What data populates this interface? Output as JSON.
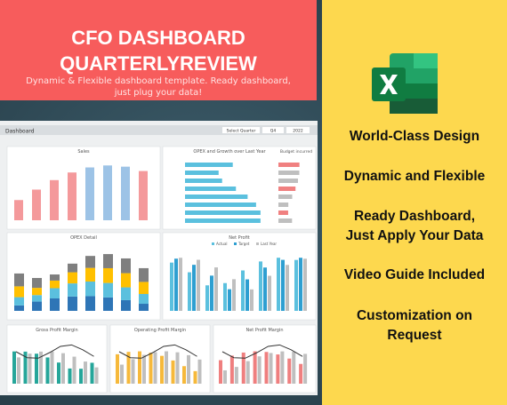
{
  "banner": {
    "title_lines": [
      "CFO DASHBOARD",
      "QUARTERLYREVIEW"
    ],
    "subtitle_lines": [
      "Dynamic & Flexible dashboard template. Ready dashboard,",
      "just plug your data!"
    ]
  },
  "dashboard": {
    "title": "Dashboard",
    "select_label": "Select Quarter",
    "quarter": "Q4",
    "year": "2022",
    "panels": [
      "Sales",
      "OPEX and Growth over Last Year",
      "OPEX Detail",
      "Net Profit",
      "Gross Profit Margin",
      "Operating Profit Margin",
      "Net Profit Margin"
    ],
    "budget_label": "Budget incurred",
    "legend": [
      "Actual",
      "Target",
      "Last Year"
    ]
  },
  "features": [
    "World-Class Design",
    "Dynamic and Flexible",
    "Ready Dashboard,",
    "Just Apply Your Data",
    "Video Guide Included",
    "Customization on",
    "Request"
  ]
}
